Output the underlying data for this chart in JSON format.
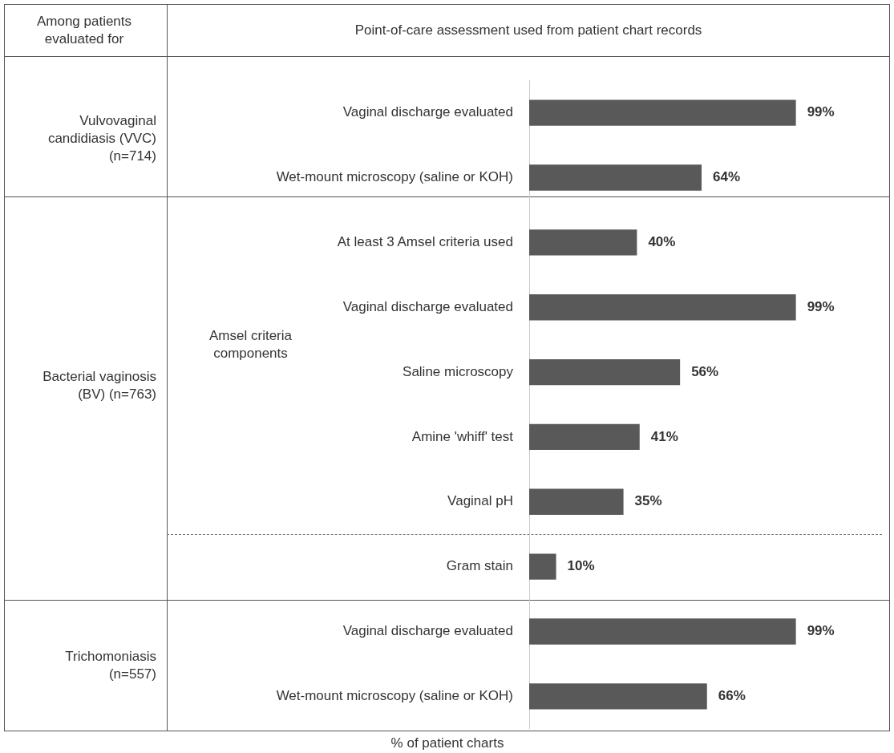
{
  "chart_data": {
    "type": "bar",
    "orientation": "horizontal",
    "title": "Point-of-care assessment used from patient chart records",
    "xlabel": "% of patient charts",
    "categories": [
      "Vaginal discharge evaluated",
      "Wet-mount microscopy (saline or KOH)",
      "At least 3 Amsel criteria used",
      "Vaginal discharge evaluated",
      "Saline microscopy",
      "Amine 'whiff' test",
      "Vaginal pH",
      "Gram stain",
      "Vaginal discharge evaluated",
      "Wet-mount microscopy (saline or KOH)"
    ],
    "values": [
      99,
      64,
      40,
      99,
      56,
      41,
      35,
      10,
      99,
      66
    ],
    "value_labels": [
      "99%",
      "64%",
      "40%",
      "99%",
      "56%",
      "41%",
      "35%",
      "10%",
      "99%",
      "66%"
    ],
    "color": "#595959",
    "xlim": [
      0,
      100
    ],
    "tick_labels": "y",
    "legend": false,
    "annotations": [
      "Among patients evaluated for",
      "Vulvovaginal candidiasis (VVC) (n=714)",
      "Bacterial vaginosis (BV) (n=763)",
      "Trichomoniasis (n=557)",
      "Amsel criteria components"
    ]
  }
}
